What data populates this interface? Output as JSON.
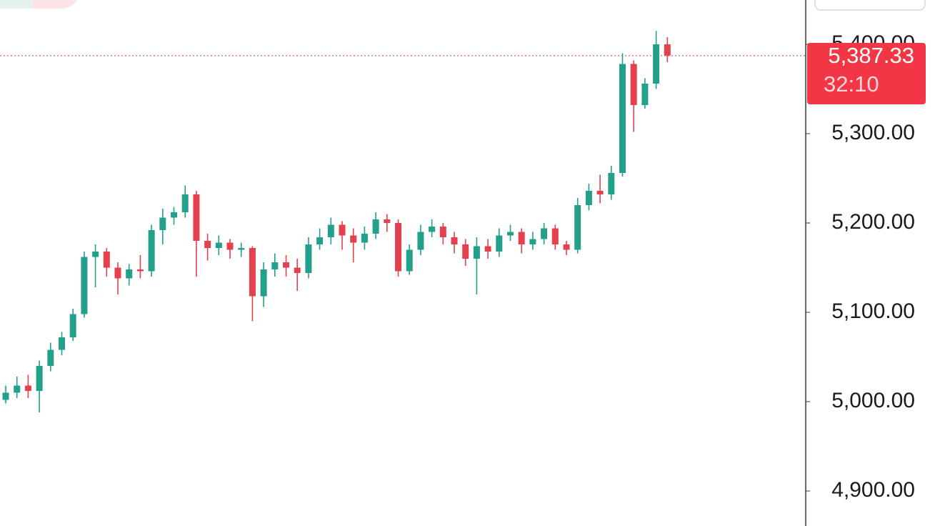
{
  "chart_data": {
    "type": "candlestick",
    "up_color": "#22a08b",
    "down_color": "#e5404d",
    "ylim": [
      4860.8,
      5449.6
    ],
    "yticks": [
      {
        "value": 4900,
        "label": "4,900.00"
      },
      {
        "value": 5000,
        "label": "5,000.00"
      },
      {
        "value": 5100,
        "label": "5,100.00"
      },
      {
        "value": 5200,
        "label": "5,200.00"
      },
      {
        "value": 5300,
        "label": "5,300.00"
      },
      {
        "value": 5400,
        "label": "5,400.00"
      }
    ],
    "last_price": {
      "value": 5387.33,
      "label": "5,387.33"
    },
    "countdown": "32:10",
    "open": [
      5002,
      5010,
      5018,
      5012,
      5040,
      5058,
      5072,
      5098,
      5162,
      5168,
      5150,
      5138,
      5148,
      5146,
      5192,
      5206,
      5212,
      5232,
      5180,
      5172,
      5178,
      5170,
      5172,
      5118,
      5148,
      5156,
      5150,
      5144,
      5176,
      5184,
      5198,
      5186,
      5178,
      5188,
      5204,
      5200,
      5146,
      5170,
      5190,
      5196,
      5184,
      5176,
      5160,
      5174,
      5168,
      5186,
      5190,
      5176,
      5182,
      5194,
      5176,
      5170,
      5220,
      5236,
      5232,
      5256,
      5378,
      5332,
      5356,
      5400
    ],
    "high": [
      5018,
      5028,
      5030,
      5046,
      5066,
      5078,
      5104,
      5168,
      5176,
      5172,
      5156,
      5154,
      5164,
      5198,
      5216,
      5218,
      5242,
      5236,
      5188,
      5186,
      5182,
      5178,
      5174,
      5156,
      5166,
      5164,
      5160,
      5184,
      5194,
      5206,
      5202,
      5194,
      5196,
      5212,
      5210,
      5204,
      5176,
      5198,
      5204,
      5200,
      5190,
      5182,
      5184,
      5182,
      5194,
      5198,
      5194,
      5190,
      5200,
      5198,
      5180,
      5228,
      5244,
      5254,
      5264,
      5390,
      5382,
      5362,
      5415,
      5408
    ],
    "low": [
      4998,
      5004,
      5004,
      4988,
      5034,
      5052,
      5068,
      5094,
      5128,
      5140,
      5120,
      5130,
      5138,
      5140,
      5176,
      5198,
      5206,
      5140,
      5158,
      5164,
      5160,
      5162,
      5090,
      5106,
      5140,
      5140,
      5124,
      5138,
      5170,
      5176,
      5170,
      5156,
      5170,
      5182,
      5190,
      5140,
      5142,
      5164,
      5184,
      5176,
      5166,
      5152,
      5120,
      5160,
      5162,
      5180,
      5166,
      5170,
      5176,
      5170,
      5164,
      5166,
      5214,
      5222,
      5226,
      5252,
      5302,
      5328,
      5350,
      5380
    ],
    "close": [
      5010,
      5018,
      5012,
      5040,
      5058,
      5072,
      5098,
      5162,
      5168,
      5150,
      5138,
      5148,
      5146,
      5192,
      5206,
      5212,
      5232,
      5180,
      5172,
      5178,
      5170,
      5172,
      5118,
      5148,
      5156,
      5150,
      5144,
      5176,
      5184,
      5198,
      5186,
      5178,
      5188,
      5204,
      5200,
      5146,
      5170,
      5190,
      5196,
      5184,
      5176,
      5160,
      5174,
      5168,
      5186,
      5190,
      5176,
      5182,
      5194,
      5176,
      5170,
      5220,
      5236,
      5232,
      5256,
      5378,
      5332,
      5356,
      5400,
      5387.33
    ]
  }
}
